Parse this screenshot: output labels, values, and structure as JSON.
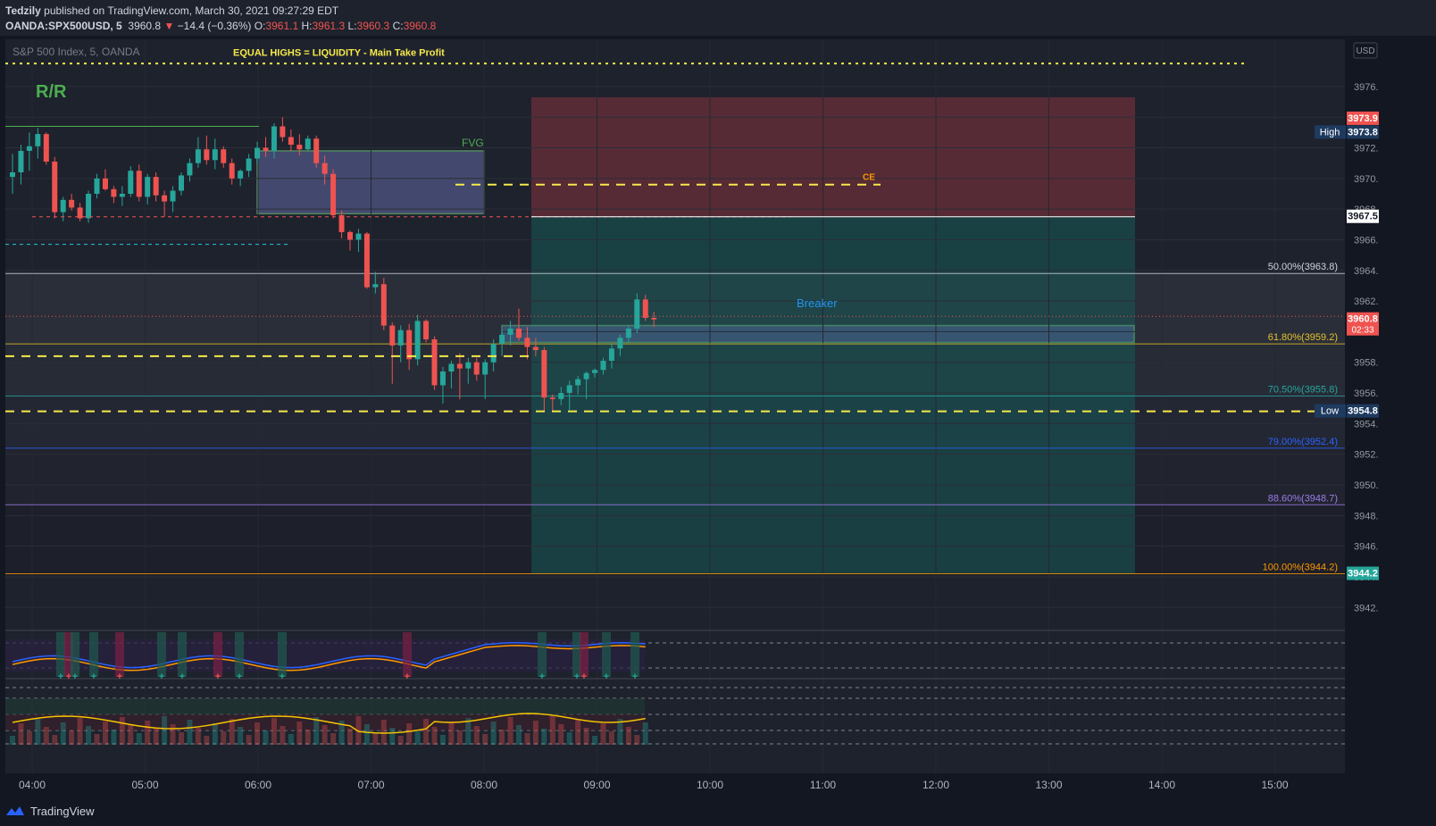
{
  "header": {
    "author": "Tedzily",
    "published_text": "published on TradingView.com, March 30, 2021 09:27:29 EDT",
    "symbol": "OANDA:SPX500USD, 5",
    "last": "3960.8",
    "change_arrow": "▼",
    "change": "−14.4 (−0.36%)",
    "o_label": "O:",
    "o": "3961.1",
    "h_label": "H:",
    "h": "3961.3",
    "l_label": "L:",
    "l": "3960.3",
    "c_label": "C:",
    "c": "3960.8"
  },
  "chart_title": "S&P 500 Index, 5, OANDA",
  "currency": "USD",
  "footer": {
    "brand": "TradingView"
  },
  "chart_data": {
    "type": "candlestick",
    "ylim": [
      3940.5,
      3978.5
    ],
    "y_ticks": [
      "3976.0",
      "3974.0",
      "3972.0",
      "3970.0",
      "3968.0",
      "3966.0",
      "3964.0",
      "3962.0",
      "3960.0",
      "3958.0",
      "3956.0",
      "3954.0",
      "3952.0",
      "3950.0",
      "3948.0",
      "3946.0",
      "3944.0",
      "3942.0"
    ],
    "x_ticks": [
      "04:00",
      "05:00",
      "06:00",
      "07:00",
      "08:00",
      "09:00",
      "10:00",
      "11:00",
      "12:00",
      "13:00",
      "14:00",
      "15:00"
    ],
    "price_labels": [
      {
        "price": 3973.9,
        "text": "3973.9",
        "color": "#ef5350"
      },
      {
        "price": 3973.0,
        "text": "3973.8",
        "prefix": "High",
        "color": "#1e3a5f"
      },
      {
        "price": 3967.5,
        "text": "3967.5",
        "color": "#ffffff"
      },
      {
        "price": 3960.8,
        "text": "3960.8",
        "sub": "02:33",
        "color": "#ef5350"
      },
      {
        "price": 3954.8,
        "text": "3954.8",
        "prefix": "Low",
        "color": "#1e3a5f"
      },
      {
        "price": 3944.2,
        "text": "3944.2",
        "color": "#26a69a"
      }
    ],
    "fib_levels": [
      {
        "price": 3963.8,
        "label": "50.00%(3963.8)",
        "color": "#d1d4dc"
      },
      {
        "price": 3959.2,
        "label": "61.80%(3959.2)",
        "color": "#e6c229"
      },
      {
        "price": 3955.8,
        "label": "70.50%(3955.8)",
        "color": "#26a69a"
      },
      {
        "price": 3952.4,
        "label": "79.00%(3952.4)",
        "color": "#2962ff"
      },
      {
        "price": 3948.7,
        "label": "88.60%(3948.7)",
        "color": "#9c7ee8"
      },
      {
        "price": 3944.2,
        "label": "100.00%(3944.2)",
        "color": "#ff9800"
      }
    ],
    "annotations": {
      "equal_highs": "EQUAL HIGHS = LIQUIDITY - Main Take Profit",
      "rr": "R/R",
      "fvg": "FVG",
      "ce": "CE",
      "breaker": "Breaker"
    },
    "candles": [
      [
        3970.1,
        3971.6,
        3969.0,
        3970.4
      ],
      [
        3970.4,
        3972.2,
        3969.6,
        3971.8
      ],
      [
        3971.8,
        3973.0,
        3970.5,
        3972.1
      ],
      [
        3972.1,
        3973.3,
        3971.3,
        3972.9
      ],
      [
        3972.9,
        3973.0,
        3970.9,
        3971.1
      ],
      [
        3971.1,
        3971.4,
        3967.4,
        3967.8
      ],
      [
        3967.8,
        3968.8,
        3967.2,
        3968.6
      ],
      [
        3968.6,
        3969.0,
        3967.9,
        3968.1
      ],
      [
        3968.1,
        3968.4,
        3967.2,
        3967.4
      ],
      [
        3967.4,
        3969.2,
        3967.1,
        3969.0
      ],
      [
        3969.0,
        3970.3,
        3968.7,
        3970.0
      ],
      [
        3970.0,
        3970.6,
        3969.2,
        3969.3
      ],
      [
        3969.3,
        3969.5,
        3968.4,
        3968.8
      ],
      [
        3968.8,
        3969.5,
        3968.2,
        3969.0
      ],
      [
        3969.0,
        3970.8,
        3968.8,
        3970.5
      ],
      [
        3970.5,
        3970.9,
        3968.5,
        3968.8
      ],
      [
        3968.8,
        3970.3,
        3968.3,
        3970.1
      ],
      [
        3970.1,
        3970.4,
        3968.5,
        3968.9
      ],
      [
        3968.9,
        3969.2,
        3967.5,
        3968.5
      ],
      [
        3968.5,
        3969.5,
        3967.8,
        3969.2
      ],
      [
        3969.2,
        3970.4,
        3968.9,
        3970.2
      ],
      [
        3970.2,
        3971.3,
        3969.8,
        3971.0
      ],
      [
        3971.0,
        3972.7,
        3970.7,
        3971.9
      ],
      [
        3971.9,
        3972.8,
        3970.9,
        3971.2
      ],
      [
        3971.2,
        3972.6,
        3970.6,
        3971.9
      ],
      [
        3971.9,
        3972.1,
        3970.7,
        3971.0
      ],
      [
        3971.0,
        3971.3,
        3969.6,
        3970.0
      ],
      [
        3970.0,
        3970.6,
        3969.5,
        3970.5
      ],
      [
        3970.5,
        3971.6,
        3970.1,
        3971.3
      ],
      [
        3971.3,
        3972.4,
        3971.0,
        3972.0
      ],
      [
        3972.0,
        3972.7,
        3971.4,
        3971.8
      ],
      [
        3971.8,
        3973.6,
        3971.3,
        3973.4
      ],
      [
        3973.4,
        3974.0,
        3972.4,
        3972.7
      ],
      [
        3972.7,
        3973.2,
        3971.8,
        3972.2
      ],
      [
        3972.2,
        3972.9,
        3971.5,
        3971.9
      ],
      [
        3971.9,
        3972.8,
        3971.8,
        3972.6
      ],
      [
        3972.6,
        3972.8,
        3970.7,
        3971.0
      ],
      [
        3971.0,
        3971.5,
        3969.6,
        3970.3
      ],
      [
        3970.3,
        3970.6,
        3967.4,
        3967.6
      ],
      [
        3967.6,
        3967.9,
        3966.1,
        3966.5
      ],
      [
        3966.5,
        3966.6,
        3965.3,
        3966.0
      ],
      [
        3966.0,
        3966.7,
        3965.2,
        3966.4
      ],
      [
        3966.4,
        3966.5,
        3962.8,
        3962.9
      ],
      [
        3962.9,
        3963.9,
        3962.5,
        3963.1
      ],
      [
        3963.1,
        3963.5,
        3960.1,
        3960.4
      ],
      [
        3960.4,
        3960.6,
        3956.6,
        3959.1
      ],
      [
        3959.1,
        3960.4,
        3958.0,
        3960.1
      ],
      [
        3960.1,
        3960.5,
        3957.5,
        3958.2
      ],
      [
        3958.2,
        3961.1,
        3957.8,
        3960.7
      ],
      [
        3960.7,
        3960.8,
        3959.3,
        3959.5
      ],
      [
        3959.5,
        3959.7,
        3956.2,
        3956.5
      ],
      [
        3956.5,
        3957.7,
        3955.3,
        3957.4
      ],
      [
        3957.4,
        3958.1,
        3956.3,
        3957.9
      ],
      [
        3957.9,
        3958.6,
        3955.6,
        3957.6
      ],
      [
        3957.6,
        3958.3,
        3956.6,
        3958.0
      ],
      [
        3958.0,
        3958.3,
        3956.8,
        3957.2
      ],
      [
        3957.2,
        3958.2,
        3955.6,
        3958.0
      ],
      [
        3958.0,
        3959.5,
        3957.4,
        3959.2
      ],
      [
        3959.2,
        3960.1,
        3958.4,
        3959.8
      ],
      [
        3959.8,
        3960.7,
        3959.1,
        3960.2
      ],
      [
        3960.2,
        3961.5,
        3959.4,
        3959.6
      ],
      [
        3959.6,
        3960.3,
        3958.2,
        3959.0
      ],
      [
        3959.0,
        3959.6,
        3958.4,
        3958.8
      ],
      [
        3958.8,
        3959.0,
        3954.8,
        3955.7
      ],
      [
        3955.7,
        3955.9,
        3954.8,
        3955.6
      ],
      [
        3955.6,
        3956.4,
        3955.2,
        3956.0
      ],
      [
        3956.0,
        3956.8,
        3954.9,
        3956.5
      ],
      [
        3956.5,
        3957.1,
        3955.9,
        3956.9
      ],
      [
        3956.9,
        3957.4,
        3955.6,
        3957.3
      ],
      [
        3957.3,
        3957.6,
        3957.0,
        3957.5
      ],
      [
        3957.5,
        3958.3,
        3957.2,
        3958.1
      ],
      [
        3958.1,
        3959.2,
        3957.6,
        3958.9
      ],
      [
        3958.9,
        3959.8,
        3958.4,
        3959.6
      ],
      [
        3959.6,
        3960.4,
        3959.3,
        3960.2
      ],
      [
        3960.2,
        3962.5,
        3959.9,
        3962.1
      ],
      [
        3962.1,
        3962.4,
        3960.7,
        3960.9
      ],
      [
        3960.9,
        3961.3,
        3960.3,
        3960.8
      ]
    ]
  }
}
